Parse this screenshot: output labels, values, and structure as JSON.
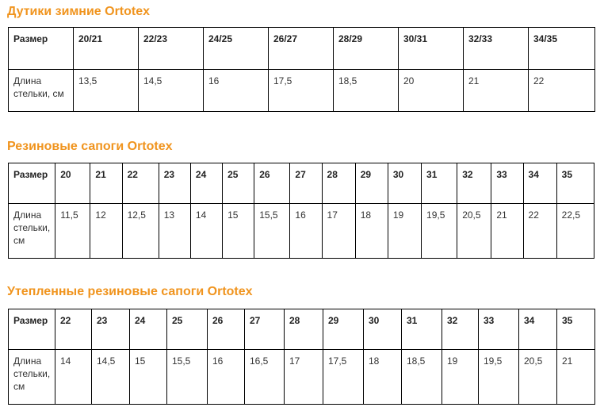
{
  "tables": [
    {
      "title": "Дутики зимние Ortotex",
      "header_label": "Размер",
      "row_label": "Длина стельки, см",
      "sizes": [
        "20/21",
        "22/23",
        "24/25",
        "26/27",
        "28/29",
        "30/31",
        "32/33",
        "34/35"
      ],
      "lengths": [
        "13,5",
        "14,5",
        "16",
        "17,5",
        "18,5",
        "20",
        "21",
        "22"
      ]
    },
    {
      "title": "Резиновые сапоги Ortotex",
      "header_label": "Размер",
      "row_label": "Длина стельки, см",
      "sizes": [
        "20",
        "21",
        "22",
        "23",
        "24",
        "25",
        "26",
        "27",
        "28",
        "29",
        "30",
        "31",
        "32",
        "33",
        "34",
        "35"
      ],
      "lengths": [
        "11,5",
        "12",
        "12,5",
        "13",
        "14",
        "15",
        "15,5",
        "16",
        "17",
        "18",
        "19",
        "19,5",
        "20,5",
        "21",
        "22",
        "22,5"
      ]
    },
    {
      "title": "Утепленные резиновые сапоги Ortotex",
      "header_label": "Размер",
      "row_label": "Длина стельки, см",
      "sizes": [
        "22",
        "23",
        "24",
        "25",
        "26",
        "27",
        "28",
        "29",
        "30",
        "31",
        "32",
        "33",
        "34",
        "35"
      ],
      "lengths": [
        "14",
        "14,5",
        "15",
        "15,5",
        "16",
        "16,5",
        "17",
        "17,5",
        "18",
        "18,5",
        "19",
        "19,5",
        "20,5",
        "21"
      ]
    }
  ]
}
